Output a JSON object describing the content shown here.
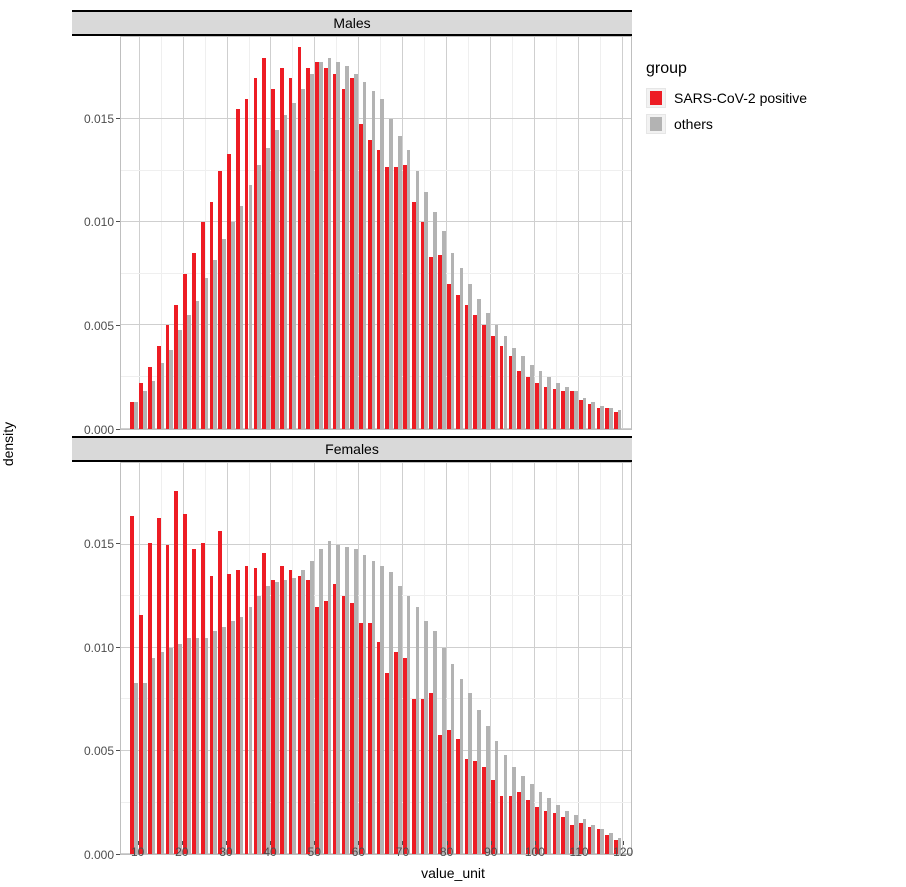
{
  "chart": {
    "type": "bar",
    "layout": "facet-vertical",
    "x_label": "value_unit",
    "y_label": "density",
    "background_color": "#ffffff",
    "grid_major_color": "#cfcfcf",
    "grid_minor_color": "#efefef",
    "panel_border_color": "#bfbfbf",
    "strip_background": "#d9d9d9",
    "strip_border_color": "#000000",
    "tick_text_color": "#4d4d4d",
    "label_fontsize": 14,
    "tick_fontsize": 12,
    "x": {
      "bin_centers": [
        9,
        11,
        13,
        15,
        17,
        19,
        21,
        23,
        25,
        27,
        29,
        31,
        33,
        35,
        37,
        39,
        41,
        43,
        45,
        47,
        49,
        51,
        53,
        55,
        57,
        59,
        61,
        63,
        65,
        67,
        69,
        71,
        73,
        75,
        77,
        79,
        81,
        83,
        85,
        87,
        89,
        91,
        93,
        95,
        97,
        99,
        101,
        103,
        105,
        107,
        109,
        111,
        113,
        115,
        117,
        119
      ],
      "xlim": [
        6,
        122
      ],
      "major_breaks": [
        10,
        20,
        30,
        40,
        50,
        60,
        70,
        80,
        90,
        100,
        110,
        120
      ],
      "bar_width_ratio": 0.42
    },
    "y": {
      "ylim": [
        0,
        0.019
      ],
      "major_breaks": [
        0.0,
        0.005,
        0.01,
        0.015
      ],
      "tick_labels": [
        "0.000",
        "0.005",
        "0.010",
        "0.015"
      ]
    },
    "legend": {
      "title": "group",
      "items": [
        {
          "label": "SARS-CoV-2 positive",
          "color": "#ed1c24"
        },
        {
          "label": "others",
          "color": "#b3b3b3"
        }
      ]
    },
    "series_colors": {
      "positive": "#ed1c24",
      "others": "#b3b3b3"
    },
    "panels": [
      {
        "title": "Males",
        "series": {
          "positive": [
            0.0013,
            0.0022,
            0.003,
            0.004,
            0.005,
            0.006,
            0.0075,
            0.0085,
            0.01,
            0.011,
            0.0125,
            0.0133,
            0.0155,
            0.016,
            0.017,
            0.018,
            0.0165,
            0.0175,
            0.017,
            0.0185,
            0.0175,
            0.0178,
            0.0175,
            0.0172,
            0.0165,
            0.017,
            0.0148,
            0.014,
            0.0135,
            0.0127,
            0.0127,
            0.0128,
            0.011,
            0.01,
            0.0083,
            0.0084,
            0.007,
            0.0065,
            0.006,
            0.0055,
            0.005,
            0.0045,
            0.004,
            0.0035,
            0.0028,
            0.0025,
            0.0022,
            0.002,
            0.0019,
            0.0018,
            0.0018,
            0.0014,
            0.0012,
            0.001,
            0.001,
            0.0008
          ],
          "others": [
            0.0013,
            0.0018,
            0.0023,
            0.0032,
            0.0038,
            0.0048,
            0.0055,
            0.0062,
            0.0073,
            0.0082,
            0.0092,
            0.01,
            0.0108,
            0.0118,
            0.0128,
            0.0136,
            0.0145,
            0.0152,
            0.0158,
            0.0165,
            0.0172,
            0.0178,
            0.018,
            0.0178,
            0.0176,
            0.0172,
            0.0168,
            0.0164,
            0.016,
            0.015,
            0.0142,
            0.0135,
            0.0125,
            0.0115,
            0.0105,
            0.0096,
            0.0085,
            0.0078,
            0.007,
            0.0063,
            0.0056,
            0.005,
            0.0045,
            0.0039,
            0.0035,
            0.0031,
            0.0028,
            0.0025,
            0.0022,
            0.002,
            0.0018,
            0.0015,
            0.0013,
            0.0011,
            0.001,
            0.0009
          ]
        }
      },
      {
        "title": "Females",
        "series": {
          "positive": [
            0.0164,
            0.0116,
            0.0151,
            0.0163,
            0.015,
            0.0176,
            0.0165,
            0.0148,
            0.0151,
            0.0135,
            0.0157,
            0.0136,
            0.0138,
            0.014,
            0.0139,
            0.0146,
            0.0133,
            0.014,
            0.0138,
            0.0135,
            0.0133,
            0.012,
            0.0123,
            0.0131,
            0.0125,
            0.0122,
            0.0112,
            0.0112,
            0.0103,
            0.0088,
            0.0098,
            0.0095,
            0.0075,
            0.0075,
            0.0078,
            0.0058,
            0.006,
            0.0056,
            0.0046,
            0.0045,
            0.0042,
            0.0036,
            0.0028,
            0.0028,
            0.003,
            0.0026,
            0.0023,
            0.0021,
            0.002,
            0.0018,
            0.0014,
            0.0015,
            0.0013,
            0.0012,
            0.0009,
            0.0007
          ],
          "others": [
            0.0083,
            0.0083,
            0.0095,
            0.0098,
            0.01,
            0.0102,
            0.0105,
            0.0105,
            0.0105,
            0.0108,
            0.011,
            0.0113,
            0.0115,
            0.012,
            0.0125,
            0.013,
            0.0132,
            0.0133,
            0.0134,
            0.0138,
            0.0142,
            0.0148,
            0.0152,
            0.015,
            0.0149,
            0.0148,
            0.0145,
            0.0142,
            0.014,
            0.0137,
            0.013,
            0.0125,
            0.012,
            0.0113,
            0.0108,
            0.01,
            0.0092,
            0.0085,
            0.0078,
            0.007,
            0.0062,
            0.0055,
            0.0048,
            0.0042,
            0.0038,
            0.0034,
            0.003,
            0.0027,
            0.0024,
            0.0021,
            0.0019,
            0.0017,
            0.0014,
            0.0012,
            0.001,
            0.0008
          ]
        }
      }
    ]
  }
}
